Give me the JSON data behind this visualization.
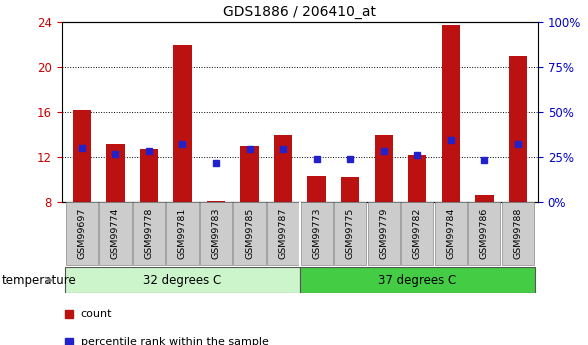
{
  "title": "GDS1886 / 206410_at",
  "samples": [
    "GSM99697",
    "GSM99774",
    "GSM99778",
    "GSM99781",
    "GSM99783",
    "GSM99785",
    "GSM99787",
    "GSM99773",
    "GSM99775",
    "GSM99779",
    "GSM99782",
    "GSM99784",
    "GSM99786",
    "GSM99788"
  ],
  "count_values": [
    16.2,
    13.2,
    12.7,
    22.0,
    8.1,
    13.0,
    14.0,
    10.3,
    10.2,
    14.0,
    12.2,
    23.8,
    8.6,
    21.0
  ],
  "percentile_values": [
    12.8,
    12.3,
    12.5,
    13.2,
    11.5,
    12.7,
    12.7,
    11.8,
    11.8,
    12.5,
    12.2,
    13.5,
    11.7,
    13.2
  ],
  "ylim": [
    8,
    24
  ],
  "yticks_left": [
    8,
    12,
    16,
    20,
    24
  ],
  "right_ticks_pct": [
    0,
    25,
    50,
    75,
    100
  ],
  "bar_color": "#bb1111",
  "percentile_color": "#2222cc",
  "bar_width": 0.55,
  "group1_label": "32 degrees C",
  "group2_label": "37 degrees C",
  "n_group1": 7,
  "n_group2": 7,
  "group1_color": "#ccf5cc",
  "group2_color": "#44cc44",
  "xlabel_bottom": "temperature",
  "legend_count": "count",
  "legend_percentile": "percentile rank within the sample",
  "title_fontsize": 10,
  "axis_color_left": "#cc0000",
  "axis_color_right": "#0000cc",
  "baseline": 8
}
